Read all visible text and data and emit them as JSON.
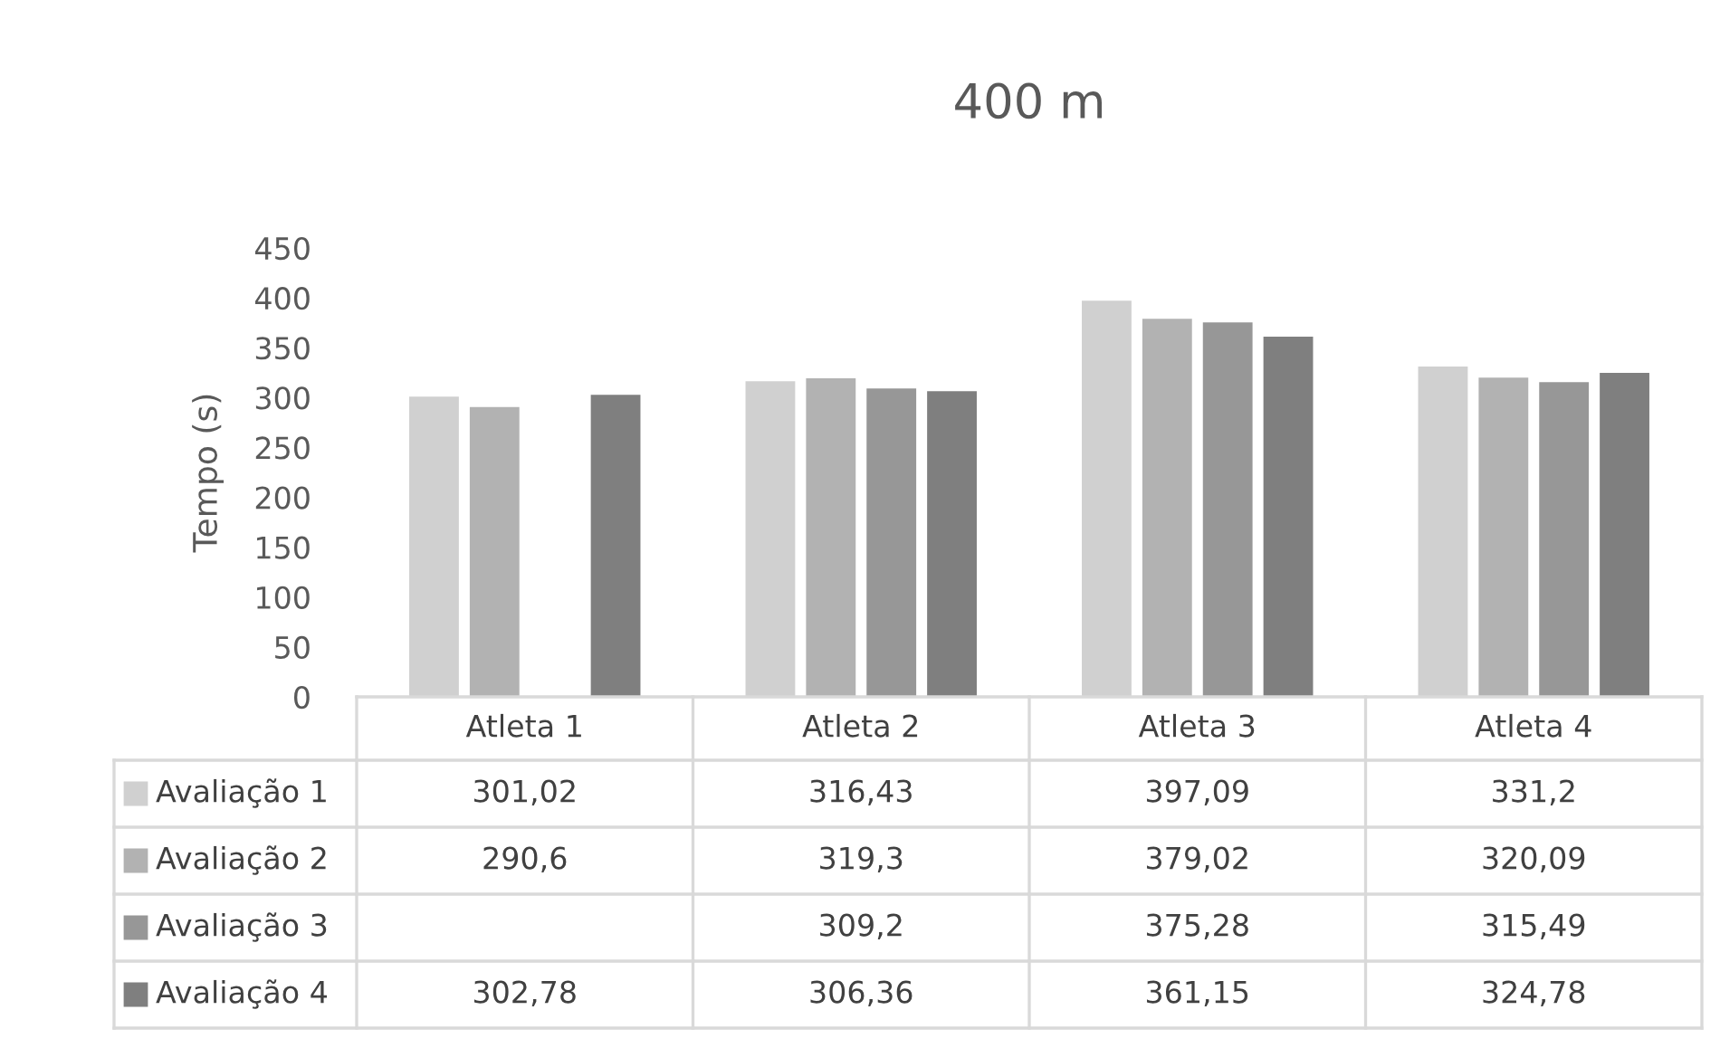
{
  "chart_data": {
    "type": "bar",
    "title": "400 m",
    "ylabel": "Tempo (s)",
    "categories": [
      "Atleta 1",
      "Atleta 2",
      "Atleta 3",
      "Atleta 4"
    ],
    "series": [
      {
        "name": "Avaliação 1",
        "color": "#d0d0d0",
        "values": [
          301.02,
          316.43,
          397.09,
          331.2
        ],
        "value_labels": [
          "301,02",
          "316,43",
          "397,09",
          "331,2"
        ]
      },
      {
        "name": "Avaliação 2",
        "color": "#b2b2b2",
        "values": [
          290.6,
          319.3,
          379.02,
          320.09
        ],
        "value_labels": [
          "290,6",
          "319,3",
          "379,02",
          "320,09"
        ]
      },
      {
        "name": "Avaliação 3",
        "color": "#979797",
        "values": [
          null,
          309.2,
          375.28,
          315.49
        ],
        "value_labels": [
          null,
          "309,2",
          "375,28",
          "315,49"
        ]
      },
      {
        "name": "Avaliação 4",
        "color": "#7f7f7f",
        "values": [
          302.78,
          306.36,
          361.15,
          324.78
        ],
        "value_labels": [
          "302,78",
          "306,36",
          "361,15",
          "324,78"
        ]
      }
    ],
    "ylim": [
      0,
      450
    ],
    "yticks": [
      0,
      50,
      100,
      150,
      200,
      250,
      300,
      350,
      400,
      450
    ],
    "grid": false,
    "legend": "bottom"
  }
}
